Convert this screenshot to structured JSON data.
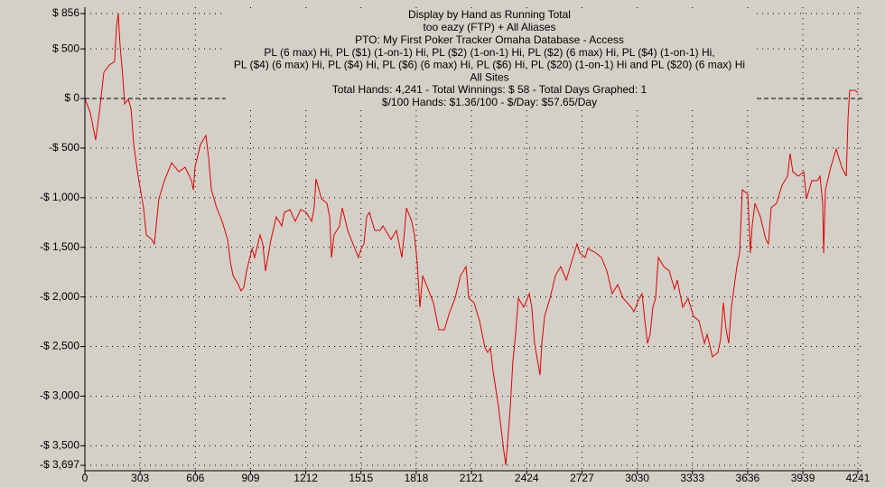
{
  "chart_data": {
    "type": "line",
    "title": "Display by Hand as Running Total",
    "subtitle_lines": [
      "too eazy (FTP) + All Aliases",
      "PTO: My First Poker Tracker Omaha Database - Access",
      "PL (6 max) Hi, PL ($1) (1-on-1) Hi, PL ($2) (1-on-1) Hi, PL ($2) (6 max) Hi, PL ($4) (1-on-1) Hi,",
      "PL ($4) (6 max) Hi, PL ($4) Hi, PL ($6) (6 max) Hi, PL ($6) Hi, PL ($20) (1-on-1) Hi and PL ($20) (6 max) Hi",
      "All Sites",
      "Total Hands: 4,241 - Total Winnings: $ 58 - Total Days Graphed: 1",
      "$/100 Hands: $1.36/100 - $/Day: $57.65/Day"
    ],
    "color": "#e00000",
    "grid": true,
    "xlim": [
      0,
      4241
    ],
    "ylim": [
      -3697,
      856
    ],
    "xticks": [
      0,
      303,
      606,
      909,
      1212,
      1515,
      1818,
      2121,
      2424,
      2727,
      3030,
      3333,
      3636,
      3939,
      4241
    ],
    "yticks": [
      {
        "value": 856,
        "label": "$ 856"
      },
      {
        "value": 500,
        "label": "$ 500"
      },
      {
        "value": 0,
        "label": "$ 0"
      },
      {
        "value": -500,
        "label": "-$ 500"
      },
      {
        "value": -1000,
        "label": "-$ 1,000"
      },
      {
        "value": -1500,
        "label": "-$ 1,500"
      },
      {
        "value": -2000,
        "label": "-$ 2,000"
      },
      {
        "value": -2500,
        "label": "-$ 2,500"
      },
      {
        "value": -3000,
        "label": "-$ 3,000"
      },
      {
        "value": -3500,
        "label": "-$ 3,500"
      },
      {
        "value": -3697,
        "label": "-$ 3,697"
      }
    ],
    "x": [
      0,
      30,
      59,
      79,
      104,
      134,
      163,
      173,
      183,
      193,
      208,
      218,
      238,
      253,
      268,
      292,
      322,
      337,
      367,
      381,
      406,
      436,
      476,
      515,
      550,
      585,
      595,
      604,
      634,
      664,
      679,
      694,
      723,
      753,
      783,
      798,
      813,
      842,
      857,
      872,
      887,
      917,
      931,
      961,
      976,
      991,
      1021,
      1050,
      1080,
      1095,
      1125,
      1154,
      1184,
      1214,
      1244,
      1258,
      1268,
      1298,
      1328,
      1343,
      1353,
      1367,
      1397,
      1412,
      1442,
      1471,
      1501,
      1516,
      1531,
      1546,
      1561,
      1590,
      1620,
      1635,
      1680,
      1709,
      1739,
      1754,
      1764,
      1793,
      1808,
      1823,
      1838,
      1853,
      1883,
      1912,
      1942,
      1972,
      2002,
      2031,
      2061,
      2091,
      2106,
      2135,
      2165,
      2195,
      2210,
      2225,
      2239,
      2269,
      2299,
      2309,
      2319,
      2334,
      2348,
      2363,
      2378,
      2408,
      2438,
      2452,
      2467,
      2497,
      2507,
      2522,
      2552,
      2581,
      2611,
      2641,
      2670,
      2700,
      2715,
      2745,
      2759,
      2804,
      2834,
      2864,
      2893,
      2923,
      2953,
      2997,
      3012,
      3042,
      3057,
      3072,
      3087,
      3101,
      3116,
      3131,
      3146,
      3176,
      3206,
      3235,
      3250,
      3280,
      3309,
      3339,
      3369,
      3399,
      3414,
      3443,
      3473,
      3488,
      3503,
      3518,
      3532,
      3547,
      3577,
      3592,
      3607,
      3637,
      3651,
      3661,
      3676,
      3706,
      3736,
      3750,
      3765,
      3795,
      3825,
      3855,
      3869,
      3884,
      3914,
      3944,
      3959,
      3988,
      4018,
      4033,
      4048,
      4053,
      4063,
      4092,
      4122,
      4152,
      4177,
      4187,
      4196,
      4226,
      4241
    ],
    "values": [
      0,
      -146,
      -419,
      -146,
      264,
      337,
      373,
      719,
      856,
      537,
      219,
      -55,
      -9,
      -100,
      -464,
      -783,
      -1102,
      -1375,
      -1421,
      -1466,
      -1011,
      -829,
      -647,
      -738,
      -692,
      -829,
      -920,
      -692,
      -464,
      -373,
      -601,
      -920,
      -1102,
      -1238,
      -1421,
      -1648,
      -1785,
      -1876,
      -1940,
      -1903,
      -1739,
      -1512,
      -1603,
      -1375,
      -1466,
      -1739,
      -1421,
      -1193,
      -1284,
      -1147,
      -1120,
      -1238,
      -1120,
      -1147,
      -1238,
      -1102,
      -810,
      -1011,
      -1056,
      -1193,
      -1603,
      -1375,
      -1284,
      -1102,
      -1330,
      -1466,
      -1603,
      -1512,
      -1466,
      -1193,
      -1147,
      -1330,
      -1330,
      -1284,
      -1421,
      -1330,
      -1603,
      -1330,
      -1102,
      -1238,
      -1375,
      -1648,
      -2104,
      -1785,
      -1921,
      -2058,
      -2331,
      -2331,
      -2149,
      -2013,
      -1785,
      -1694,
      -2013,
      -2058,
      -2240,
      -2513,
      -2559,
      -2513,
      -2741,
      -3105,
      -3561,
      -3697,
      -3469,
      -3105,
      -2650,
      -2377,
      -2013,
      -2104,
      -1967,
      -2104,
      -2468,
      -2787,
      -2468,
      -2195,
      -2013,
      -1785,
      -1694,
      -1830,
      -1648,
      -1466,
      -1557,
      -1603,
      -1512,
      -1557,
      -1603,
      -1739,
      -1967,
      -1876,
      -2013,
      -2104,
      -2149,
      -2013,
      -1967,
      -2240,
      -2468,
      -2377,
      -2104,
      -2013,
      -1603,
      -1694,
      -1739,
      -1921,
      -1830,
      -2104,
      -2013,
      -2195,
      -2240,
      -2468,
      -2377,
      -2604,
      -2559,
      -2422,
      -2058,
      -2331,
      -2468,
      -2104,
      -1694,
      -1557,
      -920,
      -965,
      -1557,
      -1284,
      -1056,
      -1193,
      -1421,
      -1466,
      -1102,
      -1056,
      -874,
      -783,
      -555,
      -738,
      -783,
      -738,
      -1011,
      -829,
      -829,
      -783,
      -1056,
      -1557,
      -920,
      -692,
      -510,
      -692,
      -783,
      -191,
      82,
      82,
      58
    ]
  }
}
